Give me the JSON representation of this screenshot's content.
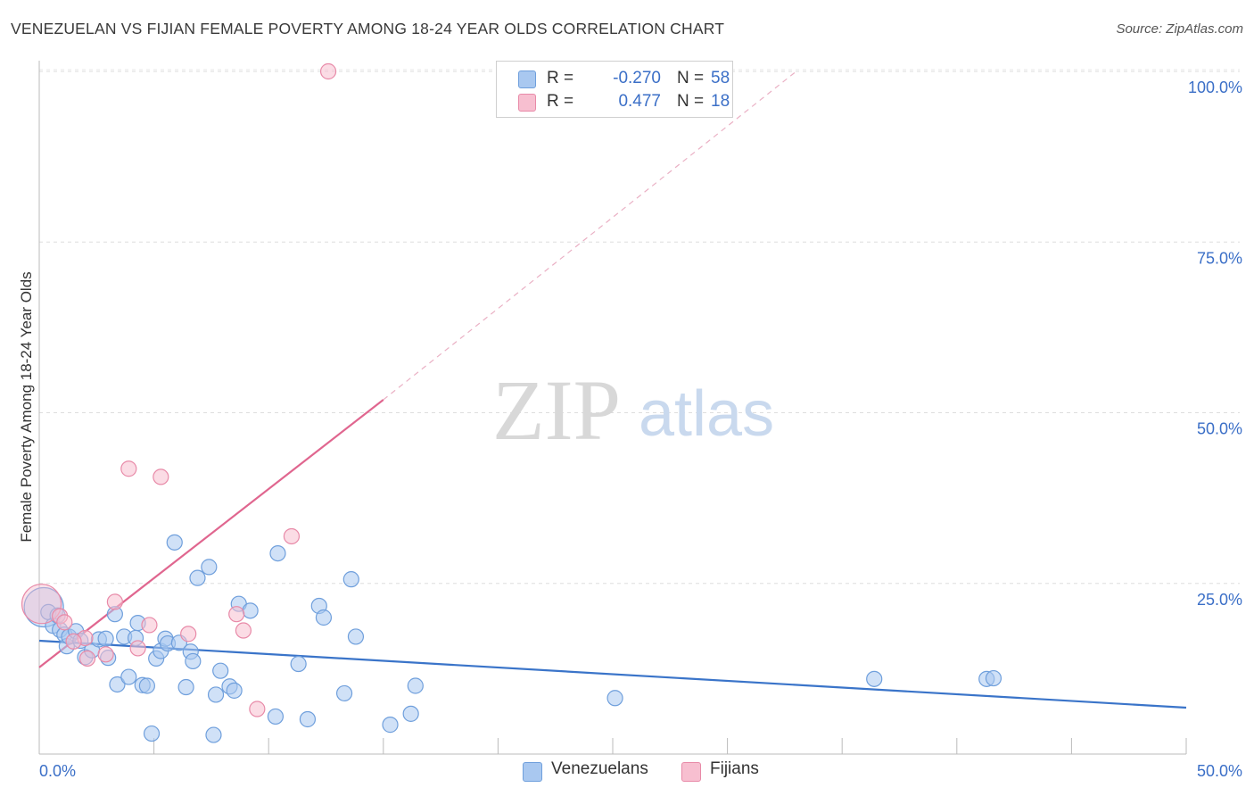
{
  "title": "VENEZUELAN VS FIJIAN FEMALE POVERTY AMONG 18-24 YEAR OLDS CORRELATION CHART",
  "source": "Source: ZipAtlas.com",
  "watermark": {
    "zip": "ZIP",
    "atlas": "atlas"
  },
  "legend": {
    "rows": [
      {
        "r_label": "R =",
        "r_value": "-0.270",
        "n_label": "N =",
        "n_value": "58",
        "color": "#a9c8f0",
        "border": "#6f9fdc"
      },
      {
        "r_label": "R =",
        "r_value": "0.477",
        "n_label": "N =",
        "n_value": "18",
        "color": "#f7bfd0",
        "border": "#e88aa8"
      }
    ]
  },
  "bottom_legend": {
    "venezuelans": "Venezuelans",
    "fijians": "Fijians"
  },
  "colors": {
    "venezuelan_fill": "#a9c8f0",
    "venezuelan_stroke": "#6f9fdc",
    "venezuelan_line": "#3a74c9",
    "fijian_fill": "#f7bfd0",
    "fijian_stroke": "#e88aa8",
    "fijian_line": "#e0668f",
    "tick_text": "#3b6fc7",
    "grid": "#dddddd"
  },
  "chart_data": {
    "type": "scatter",
    "title": "VENEZUELAN VS FIJIAN FEMALE POVERTY AMONG 18-24 YEAR OLDS CORRELATION CHART",
    "xlabel": "",
    "ylabel": "Female Poverty Among 18-24 Year Olds",
    "xlim": [
      0,
      50
    ],
    "ylim": [
      0,
      103
    ],
    "x_tick_labels": [
      "0.0%",
      "50.0%"
    ],
    "y_ticks": [
      25,
      50,
      75,
      100
    ],
    "y_tick_labels": [
      "25.0%",
      "50.0%",
      "75.0%",
      "100.0%"
    ],
    "grid": true,
    "legend_position": "top-center",
    "series": [
      {
        "name": "Venezuelans",
        "r": -0.27,
        "n": 58,
        "trend": {
          "x": [
            0,
            50
          ],
          "y": [
            16.6,
            6.8
          ],
          "style": "solid"
        },
        "points": [
          {
            "x": 0.2,
            "y": 21.5,
            "big": true
          },
          {
            "x": 0.4,
            "y": 20.8
          },
          {
            "x": 0.6,
            "y": 18.8
          },
          {
            "x": 0.8,
            "y": 20.3
          },
          {
            "x": 0.9,
            "y": 18.2
          },
          {
            "x": 1.1,
            "y": 17.5
          },
          {
            "x": 1.2,
            "y": 15.8
          },
          {
            "x": 1.3,
            "y": 17.2
          },
          {
            "x": 1.6,
            "y": 18.0
          },
          {
            "x": 1.8,
            "y": 16.6
          },
          {
            "x": 2.0,
            "y": 14.2
          },
          {
            "x": 2.3,
            "y": 15.2
          },
          {
            "x": 2.6,
            "y": 16.8
          },
          {
            "x": 2.9,
            "y": 16.9
          },
          {
            "x": 3.0,
            "y": 14.1
          },
          {
            "x": 3.3,
            "y": 20.5
          },
          {
            "x": 3.4,
            "y": 10.2
          },
          {
            "x": 3.7,
            "y": 17.2
          },
          {
            "x": 3.9,
            "y": 11.3
          },
          {
            "x": 4.2,
            "y": 17.0
          },
          {
            "x": 4.3,
            "y": 19.2
          },
          {
            "x": 4.5,
            "y": 10.1
          },
          {
            "x": 4.7,
            "y": 10.0
          },
          {
            "x": 4.9,
            "y": 3.0
          },
          {
            "x": 5.1,
            "y": 14.0
          },
          {
            "x": 5.3,
            "y": 15.1
          },
          {
            "x": 5.5,
            "y": 16.9
          },
          {
            "x": 5.6,
            "y": 16.2
          },
          {
            "x": 5.9,
            "y": 31.0
          },
          {
            "x": 6.1,
            "y": 16.3
          },
          {
            "x": 6.4,
            "y": 9.8
          },
          {
            "x": 6.6,
            "y": 15.0
          },
          {
            "x": 6.7,
            "y": 13.6
          },
          {
            "x": 6.9,
            "y": 25.8
          },
          {
            "x": 7.4,
            "y": 27.4
          },
          {
            "x": 7.6,
            "y": 2.8
          },
          {
            "x": 7.7,
            "y": 8.7
          },
          {
            "x": 7.9,
            "y": 12.2
          },
          {
            "x": 8.3,
            "y": 9.9
          },
          {
            "x": 8.5,
            "y": 9.3
          },
          {
            "x": 8.7,
            "y": 22.0
          },
          {
            "x": 9.2,
            "y": 21.0
          },
          {
            "x": 10.3,
            "y": 5.5
          },
          {
            "x": 10.4,
            "y": 29.4
          },
          {
            "x": 11.3,
            "y": 13.2
          },
          {
            "x": 11.7,
            "y": 5.1
          },
          {
            "x": 12.2,
            "y": 21.7
          },
          {
            "x": 12.4,
            "y": 20.0
          },
          {
            "x": 13.6,
            "y": 25.6
          },
          {
            "x": 13.3,
            "y": 8.9
          },
          {
            "x": 13.8,
            "y": 17.2
          },
          {
            "x": 15.3,
            "y": 4.3
          },
          {
            "x": 16.2,
            "y": 5.9
          },
          {
            "x": 16.4,
            "y": 10.0
          },
          {
            "x": 25.1,
            "y": 8.2
          },
          {
            "x": 36.4,
            "y": 11.0
          },
          {
            "x": 41.3,
            "y": 11.0
          },
          {
            "x": 41.6,
            "y": 11.1
          }
        ]
      },
      {
        "name": "Fijians",
        "r": 0.477,
        "n": 18,
        "trend": {
          "x": [
            0,
            15
          ],
          "y": [
            12.7,
            51.9
          ],
          "dashed_to": {
            "x": 33,
            "y": 100
          },
          "style": "solid+dashed"
        },
        "points": [
          {
            "x": 0.1,
            "y": 22.0,
            "big": true
          },
          {
            "x": 0.9,
            "y": 20.2
          },
          {
            "x": 1.1,
            "y": 19.3
          },
          {
            "x": 2.0,
            "y": 17.0
          },
          {
            "x": 2.1,
            "y": 14.0
          },
          {
            "x": 2.9,
            "y": 14.6
          },
          {
            "x": 3.3,
            "y": 22.3
          },
          {
            "x": 3.9,
            "y": 41.8
          },
          {
            "x": 4.3,
            "y": 15.5
          },
          {
            "x": 4.8,
            "y": 18.9
          },
          {
            "x": 5.3,
            "y": 40.6
          },
          {
            "x": 6.5,
            "y": 17.6
          },
          {
            "x": 8.6,
            "y": 20.5
          },
          {
            "x": 8.9,
            "y": 18.1
          },
          {
            "x": 9.5,
            "y": 6.6
          },
          {
            "x": 11.0,
            "y": 31.9
          },
          {
            "x": 12.6,
            "y": 100.0
          },
          {
            "x": 1.5,
            "y": 16.5
          }
        ]
      }
    ]
  }
}
